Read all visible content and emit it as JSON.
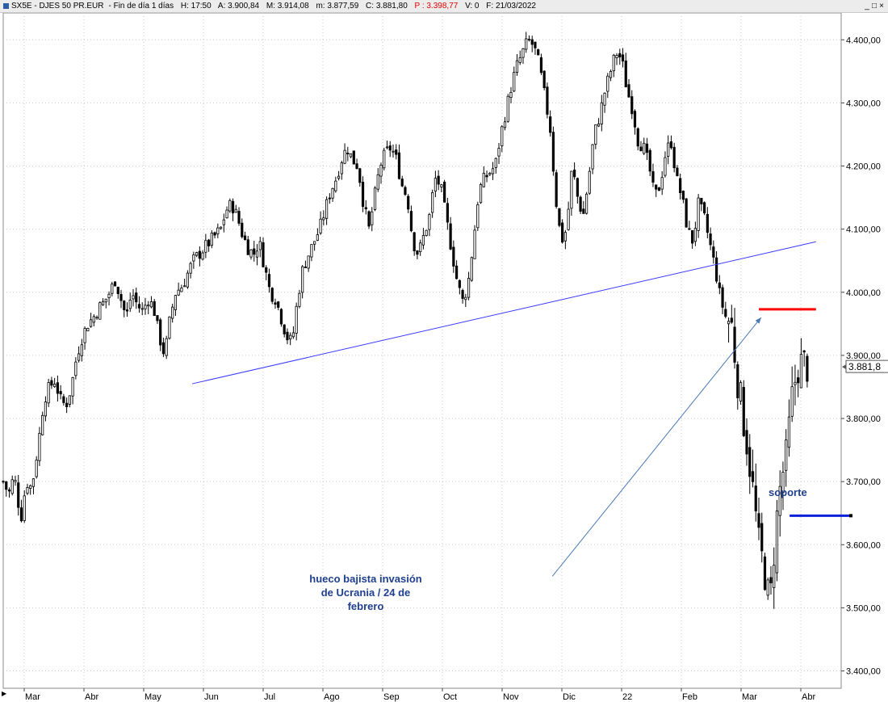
{
  "window": {
    "title_parts": {
      "symbol": "SX5E - DJES 50 PR.EUR",
      "period": "Fin de día 1 días",
      "hour": "H: 17:50",
      "open": "A: 3.900,84",
      "high": "M: 3.914,08",
      "low": "m: 3.877,59",
      "close": "C: 3.881,80",
      "prev": "P : 3.398,77",
      "volume": "V: 0",
      "date": "F: 21/03/2022"
    },
    "controls": [
      "_",
      "□",
      "×"
    ]
  },
  "colors": {
    "candle": "#000000",
    "grid": "#c9c9c9",
    "trendline": "#3a3aff",
    "arrow": "#4a78b8",
    "resistance": "#ff0000",
    "support": "#0a20d8",
    "annotation_text": "#1f3f8f"
  },
  "chart_data": {
    "type": "candlestick",
    "yticks": [
      "4.400,00",
      "4.300,00",
      "4.200,00",
      "4.100,00",
      "4.000,00",
      "3.900,00",
      "3.800,00",
      "3.700,00",
      "3.600,00",
      "3.500,00",
      "3.400,00"
    ],
    "xticks": [
      "Mar",
      "Abr",
      "May",
      "Jun",
      "Jul",
      "Ago",
      "Sep",
      "Oct",
      "Nov",
      "Dic",
      "22",
      "Feb",
      "Mar",
      "Abr"
    ],
    "ylim": [
      3370,
      4440
    ],
    "last_price_label": "3.881,8",
    "last_price": 3881.8,
    "close_path": [
      [
        0,
        3700
      ],
      [
        5,
        3680
      ],
      [
        10,
        3710
      ],
      [
        16,
        3640
      ],
      [
        21,
        3700
      ],
      [
        26,
        3690
      ],
      [
        32,
        3760
      ],
      [
        37,
        3830
      ],
      [
        42,
        3850
      ],
      [
        47,
        3860
      ],
      [
        52,
        3830
      ],
      [
        57,
        3820
      ],
      [
        62,
        3850
      ],
      [
        67,
        3900
      ],
      [
        72,
        3930
      ],
      [
        77,
        3950
      ],
      [
        82,
        3960
      ],
      [
        87,
        3975
      ],
      [
        92,
        3985
      ],
      [
        97,
        4000
      ],
      [
        102,
        4020
      ],
      [
        107,
        3990
      ],
      [
        112,
        3960
      ],
      [
        117,
        4000
      ],
      [
        122,
        3980
      ],
      [
        127,
        3970
      ],
      [
        132,
        3990
      ],
      [
        137,
        3975
      ],
      [
        142,
        3930
      ],
      [
        147,
        3900
      ],
      [
        152,
        3960
      ],
      [
        157,
        4000
      ],
      [
        163,
        4010
      ],
      [
        168,
        4030
      ],
      [
        173,
        4050
      ],
      [
        178,
        4060
      ],
      [
        183,
        4070
      ],
      [
        188,
        4080
      ],
      [
        193,
        4090
      ],
      [
        198,
        4100
      ],
      [
        203,
        4130
      ],
      [
        208,
        4140
      ],
      [
        213,
        4120
      ],
      [
        218,
        4090
      ],
      [
        223,
        4070
      ],
      [
        228,
        4060
      ],
      [
        233,
        4080
      ],
      [
        238,
        4040
      ],
      [
        243,
        4000
      ],
      [
        248,
        3990
      ],
      [
        253,
        3960
      ],
      [
        258,
        3930
      ],
      [
        263,
        3920
      ],
      [
        268,
        3990
      ],
      [
        273,
        4040
      ],
      [
        278,
        4060
      ],
      [
        283,
        4080
      ],
      [
        288,
        4100
      ],
      [
        293,
        4130
      ],
      [
        298,
        4160
      ],
      [
        303,
        4180
      ],
      [
        308,
        4210
      ],
      [
        313,
        4230
      ],
      [
        318,
        4210
      ],
      [
        323,
        4200
      ],
      [
        328,
        4140
      ],
      [
        333,
        4100
      ],
      [
        338,
        4150
      ],
      [
        343,
        4200
      ],
      [
        348,
        4220
      ],
      [
        353,
        4230
      ],
      [
        358,
        4210
      ],
      [
        363,
        4170
      ],
      [
        368,
        4150
      ],
      [
        373,
        4080
      ],
      [
        378,
        4060
      ],
      [
        383,
        4090
      ],
      [
        388,
        4120
      ],
      [
        393,
        4180
      ],
      [
        398,
        4170
      ],
      [
        403,
        4120
      ],
      [
        408,
        4070
      ],
      [
        413,
        4020
      ],
      [
        418,
        3985
      ],
      [
        423,
        4010
      ],
      [
        428,
        4080
      ],
      [
        433,
        4160
      ],
      [
        438,
        4180
      ],
      [
        443,
        4190
      ],
      [
        448,
        4200
      ],
      [
        453,
        4250
      ],
      [
        458,
        4290
      ],
      [
        463,
        4330
      ],
      [
        468,
        4360
      ],
      [
        473,
        4380
      ],
      [
        478,
        4400
      ],
      [
        483,
        4390
      ],
      [
        488,
        4360
      ],
      [
        493,
        4310
      ],
      [
        498,
        4260
      ],
      [
        503,
        4150
      ],
      [
        508,
        4080
      ],
      [
        513,
        4100
      ],
      [
        518,
        4200
      ],
      [
        523,
        4150
      ],
      [
        528,
        4120
      ],
      [
        533,
        4180
      ],
      [
        538,
        4250
      ],
      [
        543,
        4280
      ],
      [
        548,
        4320
      ],
      [
        553,
        4350
      ],
      [
        558,
        4380
      ],
      [
        563,
        4370
      ],
      [
        568,
        4320
      ],
      [
        573,
        4290
      ],
      [
        578,
        4240
      ],
      [
        583,
        4230
      ],
      [
        588,
        4200
      ],
      [
        593,
        4150
      ],
      [
        598,
        4170
      ],
      [
        603,
        4220
      ],
      [
        608,
        4240
      ],
      [
        613,
        4180
      ],
      [
        618,
        4150
      ],
      [
        623,
        4100
      ],
      [
        628,
        4080
      ],
      [
        633,
        4140
      ],
      [
        638,
        4120
      ],
      [
        643,
        4080
      ],
      [
        648,
        4040
      ],
      [
        653,
        3990
      ],
      [
        658,
        3960
      ],
      [
        663,
        3950
      ],
      [
        668,
        3870
      ],
      [
        673,
        3810
      ],
      [
        678,
        3750
      ],
      [
        683,
        3680
      ],
      [
        688,
        3600
      ],
      [
        693,
        3560
      ],
      [
        698,
        3500
      ],
      [
        703,
        3620
      ],
      [
        708,
        3700
      ],
      [
        713,
        3740
      ],
      [
        718,
        3830
      ],
      [
        723,
        3880
      ],
      [
        728,
        3890
      ],
      [
        732,
        3882
      ]
    ],
    "n_candles": 267,
    "trendline": {
      "x0_day": 172,
      "y0": 3855,
      "x1_day": 740,
      "y1": 4080
    },
    "resistance": {
      "price": 3973,
      "x0_day": 688,
      "x1_day": 740
    },
    "support": {
      "price": 3646,
      "x0_day": 716,
      "x1_day": 760
    },
    "arrow": {
      "from_day": 500,
      "from_price": 3550,
      "to_day": 690,
      "to_price": 3960
    },
    "annotation": [
      "hueco bajista invasión",
      "de Ucrania / 24 de",
      "febrero"
    ],
    "support_label": "soporte"
  }
}
